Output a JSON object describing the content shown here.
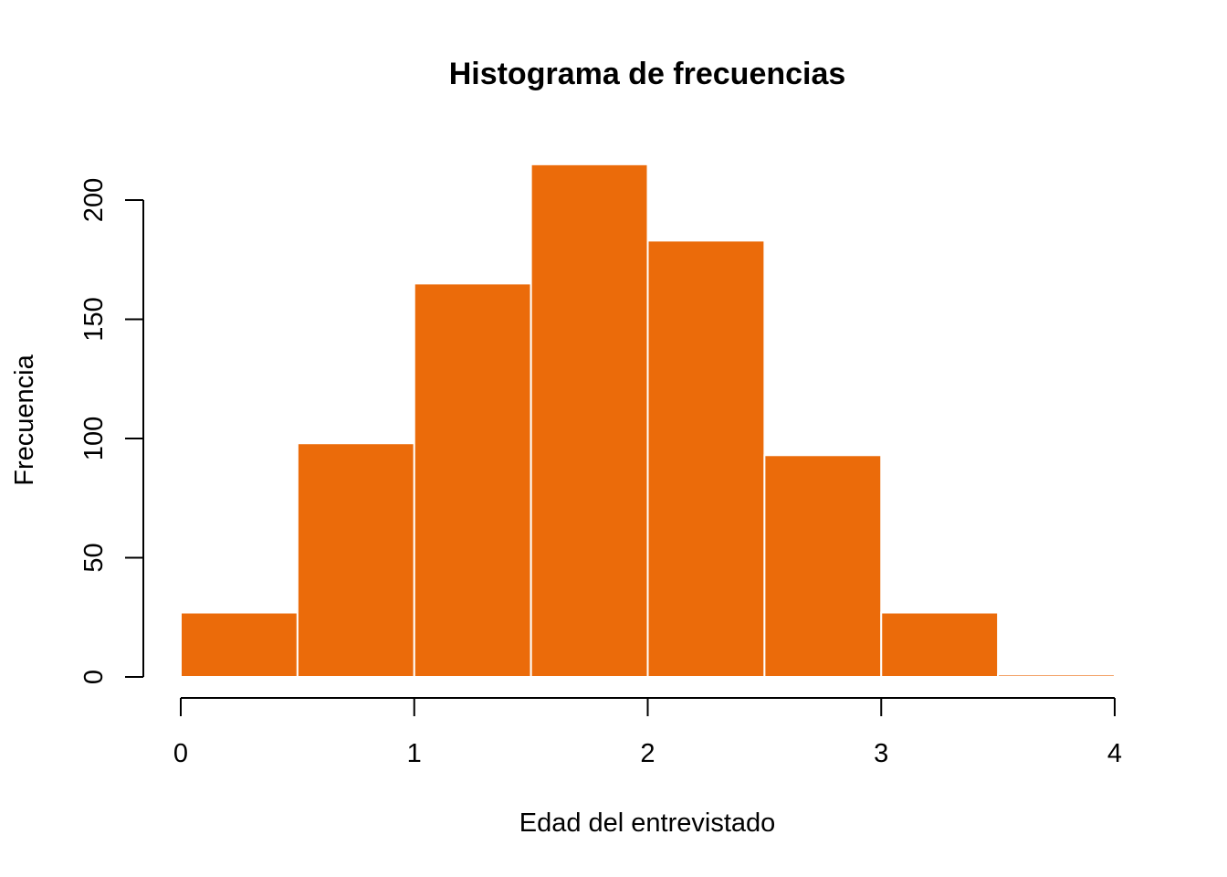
{
  "chart_data": {
    "type": "bar",
    "title": "Histograma de frecuencias",
    "xlabel": "Edad del entrevistado",
    "ylabel": "Frecuencia",
    "bins": [
      {
        "start": 0.0,
        "end": 0.5,
        "count": 27
      },
      {
        "start": 0.5,
        "end": 1.0,
        "count": 98
      },
      {
        "start": 1.0,
        "end": 1.5,
        "count": 165
      },
      {
        "start": 1.5,
        "end": 2.0,
        "count": 215
      },
      {
        "start": 2.0,
        "end": 2.5,
        "count": 183
      },
      {
        "start": 2.5,
        "end": 3.0,
        "count": 93
      },
      {
        "start": 3.0,
        "end": 3.5,
        "count": 27
      },
      {
        "start": 3.5,
        "end": 4.0,
        "count": 1
      }
    ],
    "xlim": [
      0,
      4
    ],
    "ylim": [
      0,
      200
    ],
    "x_ticks": [
      0,
      1,
      2,
      3,
      4
    ],
    "y_ticks": [
      0,
      50,
      100,
      150,
      200
    ],
    "grid": false,
    "bar_color": "#EB6B0A",
    "bar_border_color": "#FFFFFF"
  }
}
